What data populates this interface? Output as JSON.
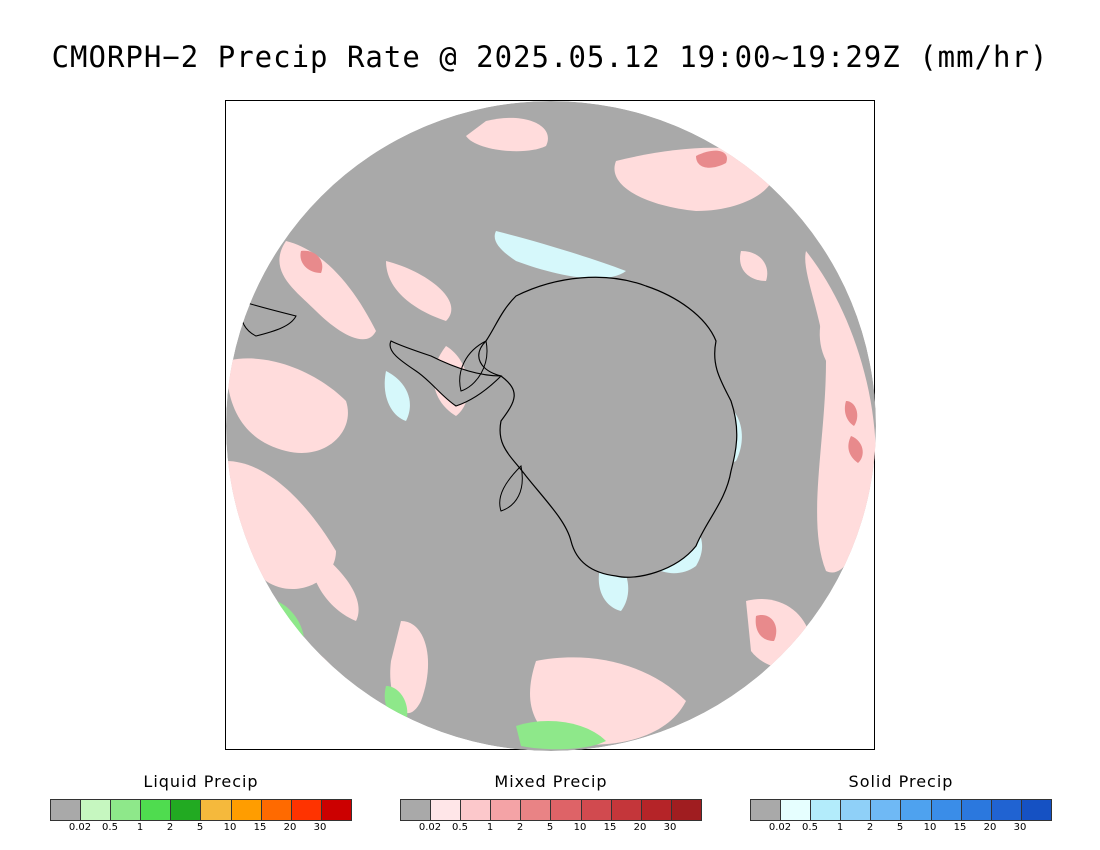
{
  "title": "CMORPH−2 Precip Rate @ 2025.05.12 19:00~19:29Z (mm/hr)",
  "map": {
    "projection": "south-polar-stereographic",
    "background_color": "#a9a9a9",
    "coastline_color": "#000000"
  },
  "legends": [
    {
      "id": "liquid",
      "title": "Liquid Precip",
      "colors": [
        "#a9a9a9",
        "#c6f7c0",
        "#8ee88a",
        "#4fdc4f",
        "#22aa22",
        "#f5b93c",
        "#ff9d00",
        "#ff6a00",
        "#ff3300",
        "#cc0000"
      ],
      "ticks": [
        "0.02",
        "0.5",
        "1",
        "2",
        "5",
        "10",
        "15",
        "20",
        "30"
      ]
    },
    {
      "id": "mixed",
      "title": "Mixed Precip",
      "colors": [
        "#a9a9a9",
        "#ffe6e8",
        "#fcc8cb",
        "#f4a3a6",
        "#e98385",
        "#de6367",
        "#d14a4f",
        "#c4363a",
        "#b52428",
        "#a01d20"
      ],
      "ticks": [
        "0.02",
        "0.5",
        "1",
        "2",
        "5",
        "10",
        "15",
        "20",
        "30"
      ]
    },
    {
      "id": "solid",
      "title": "Solid Precip",
      "colors": [
        "#a9a9a9",
        "#e6ffff",
        "#b3ecfb",
        "#8fd0f8",
        "#6fb9f5",
        "#4ea2ef",
        "#3a8de8",
        "#2b78de",
        "#2063d2",
        "#1551c3"
      ],
      "ticks": [
        "0.02",
        "0.5",
        "1",
        "2",
        "5",
        "10",
        "15",
        "20",
        "30"
      ]
    }
  ]
}
